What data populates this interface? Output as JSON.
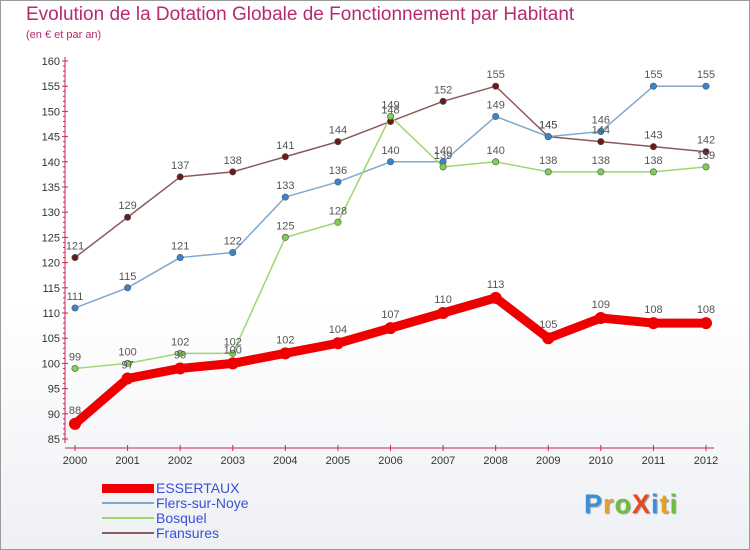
{
  "header": {
    "title": "Evolution de la Dotation Globale de Fonctionnement par Habitant",
    "subtitle": "(en € et par an)"
  },
  "logo": {
    "text": "ProXiti",
    "letter_colors": [
      "#3a8fd8",
      "#e8a020",
      "#6cbf3a",
      "#e84820",
      "#3a8fd8",
      "#e8a020",
      "#6cbf3a"
    ]
  },
  "chart_data": {
    "type": "line",
    "title": "Evolution de la Dotation Globale de Fonctionnement par Habitant",
    "subtitle": "(en € et par an)",
    "xlabel": "",
    "ylabel": "",
    "x": [
      "2000",
      "2001",
      "2002",
      "2003",
      "2004",
      "2005",
      "2006",
      "2007",
      "2008",
      "2009",
      "2010",
      "2011",
      "2012"
    ],
    "ylim": [
      85,
      160
    ],
    "yticks": [
      85,
      90,
      95,
      100,
      105,
      110,
      115,
      120,
      125,
      130,
      135,
      140,
      145,
      150,
      155,
      160
    ],
    "grid": false,
    "legend_position": "bottom-left",
    "series": [
      {
        "name": "ESSERTAUX",
        "color": "#ee0000",
        "marker_color": "#ee0000",
        "weight": "thick",
        "values": [
          88,
          97,
          99,
          100,
          102,
          104,
          107,
          110,
          113,
          105,
          109,
          108,
          108
        ],
        "labels": [
          "88",
          "97",
          "99",
          "100",
          "102",
          "104",
          "107",
          "110",
          "113",
          "105",
          "109",
          "108",
          "108"
        ]
      },
      {
        "name": "Flers-sur-Noye",
        "color": "#7ea8d0",
        "marker_color": "#3a86cc",
        "weight": "thin",
        "values": [
          111,
          115,
          121,
          122,
          133,
          136,
          140,
          140,
          149,
          145,
          146,
          155,
          155
        ],
        "labels": [
          "111",
          "115",
          "121",
          "122",
          "133",
          "136",
          "140",
          "140",
          "149",
          "145",
          "146",
          "155",
          "155"
        ]
      },
      {
        "name": "Bosquel",
        "color": "#9cd870",
        "marker_color": "#7ed04e",
        "weight": "thin",
        "values": [
          99,
          100,
          102,
          102,
          125,
          128,
          149,
          139,
          140,
          138,
          138,
          138,
          139
        ],
        "labels": [
          "99",
          "100",
          "102",
          "102",
          "125",
          "128",
          "149",
          "139",
          "140",
          "138",
          "138",
          "138",
          "139"
        ]
      },
      {
        "name": "Fransures",
        "color": "#8c5a5a",
        "marker_color": "#6a1a1a",
        "weight": "thin",
        "values": [
          121,
          129,
          137,
          138,
          141,
          144,
          148,
          152,
          155,
          145,
          144,
          143,
          142
        ],
        "labels": [
          "121",
          "129",
          "137",
          "138",
          "141",
          "144",
          "148",
          "152",
          "155",
          "145",
          "144",
          "143",
          "142"
        ]
      }
    ]
  }
}
